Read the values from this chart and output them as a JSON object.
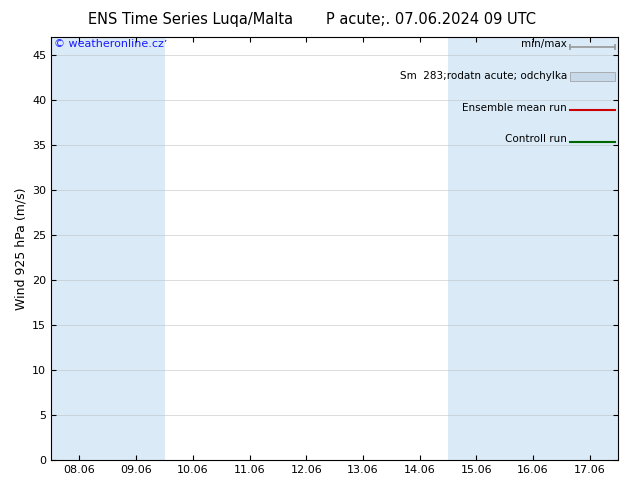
{
  "title_left": "ENS Time Series Luqa/Malta",
  "title_right": "P acute;. 07.06.2024 09 UTC",
  "ylabel": "Wind 925 hPa (m/s)",
  "ylim": [
    0,
    47
  ],
  "yticks": [
    0,
    5,
    10,
    15,
    20,
    25,
    30,
    35,
    40,
    45
  ],
  "copyright_text": "© weatheronline.czʼ",
  "bg_color": "#ffffff",
  "shade_color": "#daeaf7",
  "x_dates": [
    "08.06",
    "09.06",
    "10.06",
    "11.06",
    "12.06",
    "13.06",
    "14.06",
    "15.06",
    "16.06",
    "17.06"
  ],
  "shade_indices": [
    0,
    1,
    7,
    8,
    9
  ],
  "grid_color": "#bbbbbb",
  "legend_labels": [
    "min/max",
    "Sm  283;rodatn acute; odchylka",
    "Ensemble mean run",
    "Controll run"
  ],
  "legend_line_color_minmax": "#999999",
  "legend_fill_color": "#c8daea",
  "legend_line_red": "#cc0000",
  "legend_line_green": "#006600",
  "font_size_title": 10.5,
  "font_size_axis": 9,
  "font_size_tick": 8,
  "font_size_legend": 7.5,
  "font_size_copyright": 8
}
